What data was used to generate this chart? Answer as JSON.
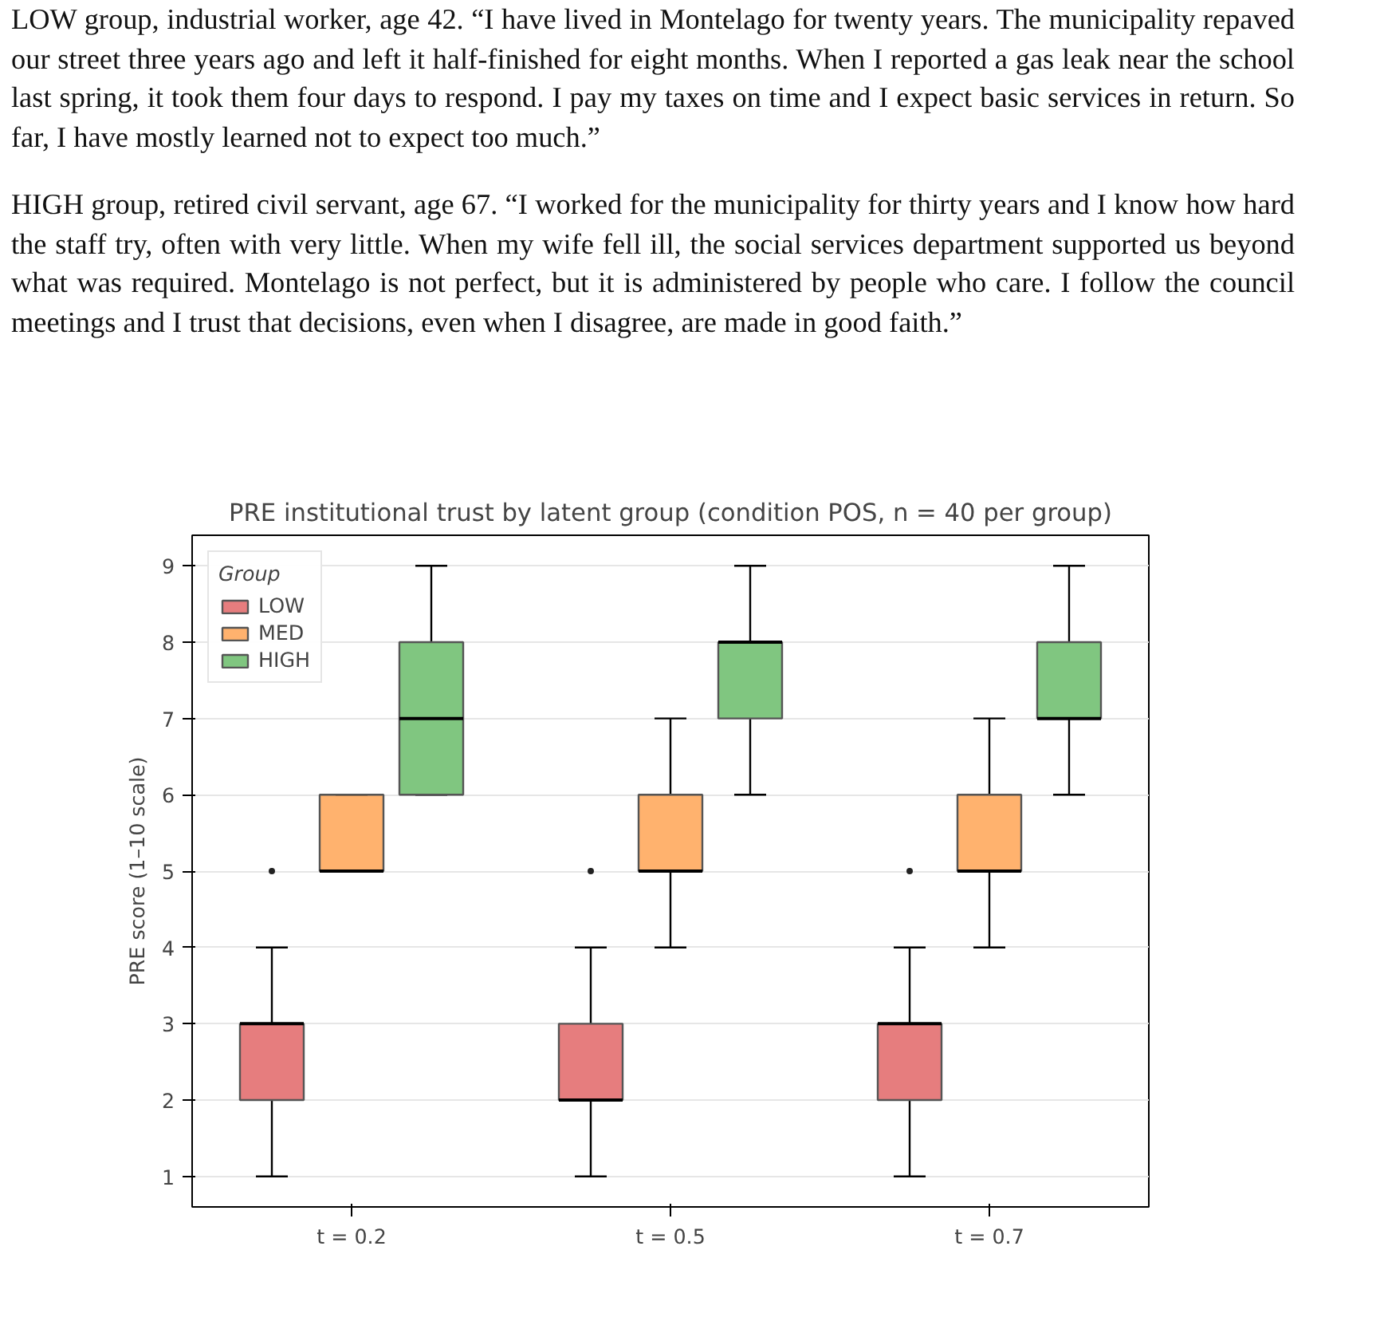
{
  "chart_data": {
    "type": "box",
    "title": "PRE institutional trust by latent group (condition POS, n = 40 per group)",
    "ylabel": "PRE score (1–10 scale)",
    "legend_title": "Group",
    "legend": "top left",
    "grid": "y",
    "categories": [
      "t = 0.2",
      "t = 0.5",
      "t = 0.7"
    ],
    "ylim": [
      0.6,
      9.4
    ],
    "yticks": [
      1,
      2,
      3,
      4,
      5,
      6,
      7,
      8,
      9
    ],
    "annotations": [
      "LOW group, industrial worker, age 42. “I have lived in Montelago for twenty years. The municipality repaved our street three years ago and left it half-finished for eight months. When I reported a gas leak near the school last spring, it took them four days to respond. I pay my taxes on time and I expect basic services in return. So far, I have mostly learned not to expect too much.”",
      "HIGH group, retired civil servant, age 67. “I worked for the municipality for thirty years and I know how hard the staff try, often with very little. When my wife fell ill, the social services department supported us beyond what was required. Montelago is not perfect, but it is administered by people who care. I follow the council meetings and I trust that decisions, even when I disagree, are made in good faith.”"
    ],
    "series": [
      {
        "name": "LOW",
        "color": "#d62728",
        "boxes": [
          {
            "low": 1,
            "q1": 2,
            "median": 3,
            "q3": 3,
            "high": 4,
            "outliers": [
              5
            ]
          },
          {
            "low": 1,
            "q1": 2,
            "median": 2,
            "q3": 3,
            "high": 4,
            "outliers": [
              5
            ]
          },
          {
            "low": 1,
            "q1": 2,
            "median": 3,
            "q3": 3,
            "high": 4,
            "outliers": [
              5
            ]
          }
        ]
      },
      {
        "name": "MED",
        "color": "#ff7f0e",
        "boxes": [
          {
            "low": 5,
            "q1": 5,
            "median": 5,
            "q3": 6,
            "high": 6
          },
          {
            "low": 4,
            "q1": 5,
            "median": 5,
            "q3": 6,
            "high": 7
          },
          {
            "low": 4,
            "q1": 5,
            "median": 5,
            "q3": 6,
            "high": 7
          }
        ]
      },
      {
        "name": "HIGH",
        "color": "#2ca02c",
        "boxes": [
          {
            "low": 6,
            "q1": 6,
            "median": 7,
            "q3": 8,
            "high": 9
          },
          {
            "low": 6,
            "q1": 7,
            "median": 8,
            "q3": 8,
            "high": 9
          },
          {
            "low": 6,
            "q1": 7,
            "median": 7,
            "q3": 8,
            "high": 9
          }
        ]
      }
    ]
  }
}
